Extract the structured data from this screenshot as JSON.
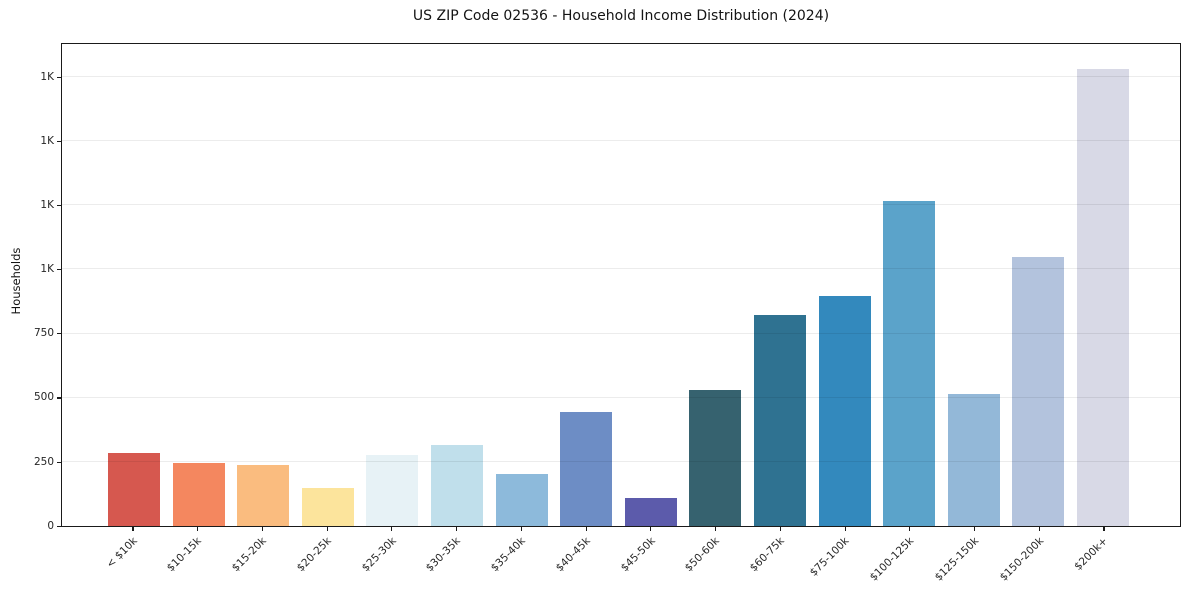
{
  "chart_data": {
    "type": "bar",
    "title": "US ZIP Code 02536 - Household Income Distribution (2024)",
    "xlabel": "",
    "ylabel": "Households",
    "categories": [
      "< $10k",
      "$10-15k",
      "$15-20k",
      "$20-25k",
      "$25-30k",
      "$30-35k",
      "$35-40k",
      "$40-45k",
      "$45-50k",
      "$50-60k",
      "$60-75k",
      "$75-100k",
      "$100-125k",
      "$125-150k",
      "$150-200k",
      "$200k+"
    ],
    "values": [
      285,
      247,
      238,
      150,
      276,
      315,
      201,
      445,
      111,
      530,
      823,
      896,
      1268,
      514,
      1048,
      1780
    ],
    "bar_colors": [
      "#d6584f",
      "#f4875f",
      "#fabc7f",
      "#fce49c",
      "#e7f2f6",
      "#c0dfeb",
      "#8dbadb",
      "#6d8dc5",
      "#5c5bab",
      "#36626f",
      "#2f7291",
      "#3389bd",
      "#5ba3ca",
      "#93b8d8",
      "#b3c3dd",
      "#d8d9e6"
    ],
    "ylim": [
      0,
      1876
    ],
    "yticks": [
      {
        "value": 0,
        "label": "0"
      },
      {
        "value": 250,
        "label": "250"
      },
      {
        "value": 500,
        "label": "500"
      },
      {
        "value": 750,
        "label": "750"
      },
      {
        "value": 1000,
        "label": "1K"
      },
      {
        "value": 1250,
        "label": "1K"
      },
      {
        "value": 1500,
        "label": "1K"
      },
      {
        "value": 1750,
        "label": "1K"
      }
    ],
    "grid": "horizontal",
    "legend": "none",
    "axis_color": "#1a1a1a",
    "grid_color": "#eaeaea"
  }
}
